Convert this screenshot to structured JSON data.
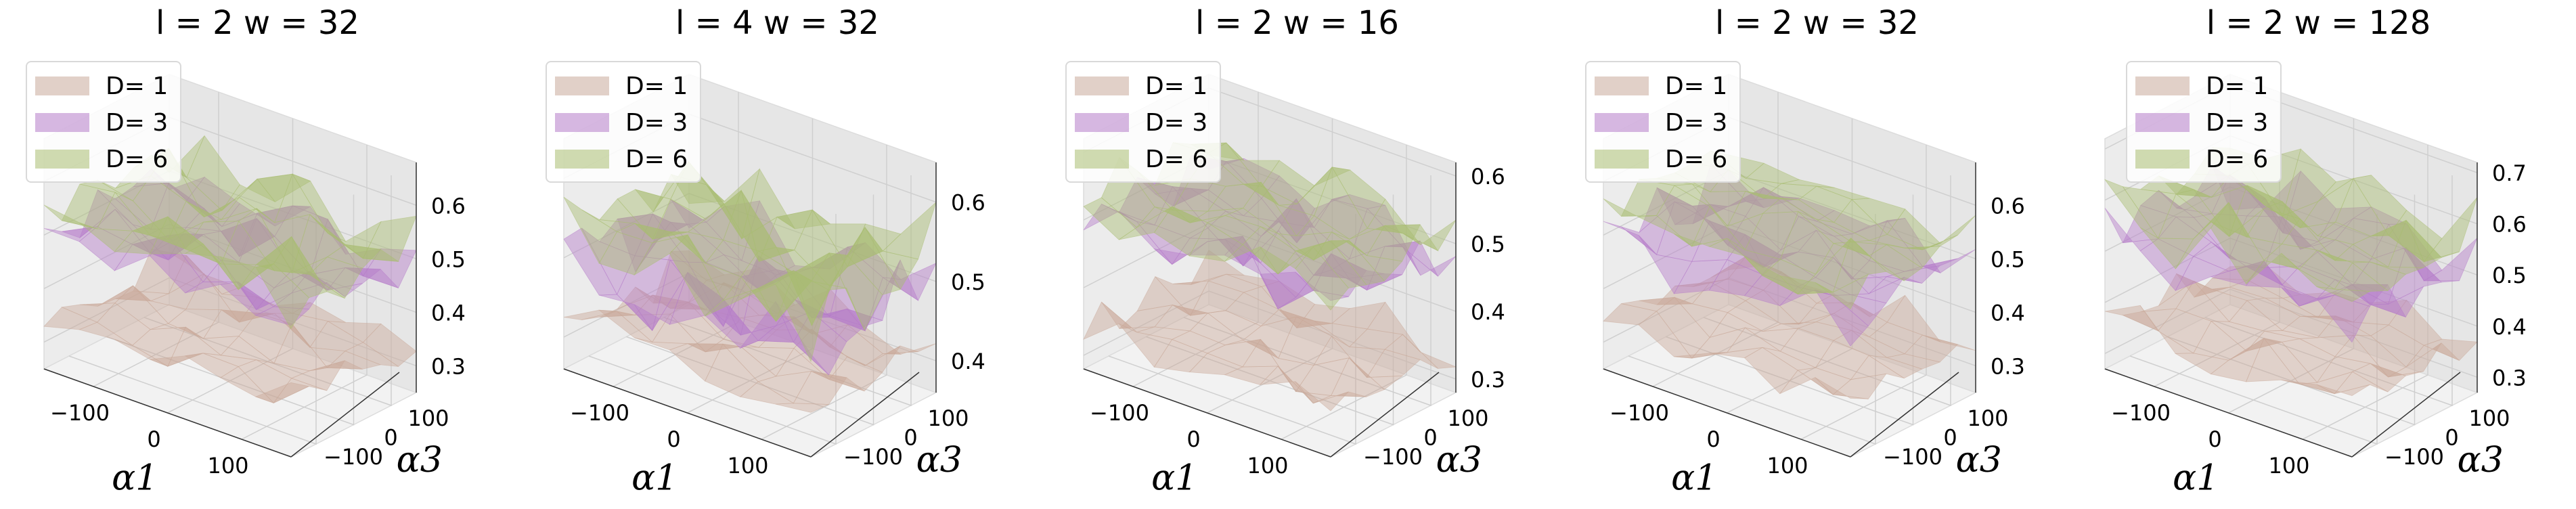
{
  "figure": {
    "panels": [
      {
        "title": "l = 2 w = 32"
      },
      {
        "title": "l = 4 w = 32"
      },
      {
        "title": "l = 2 w = 16"
      },
      {
        "title": "l = 2 w = 32"
      },
      {
        "title": "l = 2 w = 128"
      }
    ]
  },
  "chart_data": [
    {
      "type": "surface3d",
      "title": "l = 2 w = 32",
      "xlabel": "α1",
      "ylabel": "α3",
      "zlabel": "",
      "x_ticks": [
        "−100",
        "0",
        "100"
      ],
      "y_ticks": [
        "−100",
        "0",
        "100"
      ],
      "z_ticks": [
        "0.3",
        "0.4",
        "0.5",
        "0.6"
      ],
      "zlim": [
        0.25,
        0.68
      ],
      "legend_position": "top-left",
      "series": [
        {
          "name": "D= 1",
          "color": "#c9a99a",
          "z_range": [
            0.27,
            0.42
          ]
        },
        {
          "name": "D= 3",
          "color": "#b57cc9",
          "z_range": [
            0.4,
            0.6
          ]
        },
        {
          "name": "D= 6",
          "color": "#a9bd71",
          "z_range": [
            0.45,
            0.63
          ]
        }
      ]
    },
    {
      "type": "surface3d",
      "title": "l = 4 w = 32",
      "xlabel": "α1",
      "ylabel": "α3",
      "zlabel": "",
      "x_ticks": [
        "−100",
        "0",
        "100"
      ],
      "y_ticks": [
        "−100",
        "0",
        "100"
      ],
      "z_ticks": [
        "0.4",
        "0.5",
        "0.6"
      ],
      "zlim": [
        0.36,
        0.65
      ],
      "legend_position": "top-left",
      "series": [
        {
          "name": "D= 1",
          "color": "#c9a99a",
          "z_range": [
            0.37,
            0.47
          ]
        },
        {
          "name": "D= 3",
          "color": "#b57cc9",
          "z_range": [
            0.38,
            0.58
          ]
        },
        {
          "name": "D= 6",
          "color": "#a9bd71",
          "z_range": [
            0.42,
            0.63
          ]
        }
      ]
    },
    {
      "type": "surface3d",
      "title": "l = 2 w = 16",
      "xlabel": "α1",
      "ylabel": "α3",
      "zlabel": "",
      "x_ticks": [
        "−100",
        "0",
        "100"
      ],
      "y_ticks": [
        "−100",
        "0",
        "100"
      ],
      "z_ticks": [
        "0.3",
        "0.4",
        "0.5",
        "0.6"
      ],
      "zlim": [
        0.28,
        0.62
      ],
      "legend_position": "top-left",
      "series": [
        {
          "name": "D= 1",
          "color": "#c9a99a",
          "z_range": [
            0.29,
            0.4
          ]
        },
        {
          "name": "D= 3",
          "color": "#b57cc9",
          "z_range": [
            0.4,
            0.58
          ]
        },
        {
          "name": "D= 6",
          "color": "#a9bd71",
          "z_range": [
            0.44,
            0.6
          ]
        }
      ]
    },
    {
      "type": "surface3d",
      "title": "l = 2 w = 32",
      "xlabel": "α1",
      "ylabel": "α3",
      "zlabel": "",
      "x_ticks": [
        "−100",
        "0",
        "100"
      ],
      "y_ticks": [
        "−100",
        "0",
        "100"
      ],
      "z_ticks": [
        "0.3",
        "0.4",
        "0.5",
        "0.6"
      ],
      "zlim": [
        0.25,
        0.68
      ],
      "legend_position": "top-left",
      "series": [
        {
          "name": "D= 1",
          "color": "#c9a99a",
          "z_range": [
            0.27,
            0.42
          ]
        },
        {
          "name": "D= 3",
          "color": "#b57cc9",
          "z_range": [
            0.4,
            0.6
          ]
        },
        {
          "name": "D= 6",
          "color": "#a9bd71",
          "z_range": [
            0.45,
            0.63
          ]
        }
      ]
    },
    {
      "type": "surface3d",
      "title": "l = 2 w = 128",
      "xlabel": "α1",
      "ylabel": "α3",
      "zlabel": "",
      "x_ticks": [
        "−100",
        "0",
        "100"
      ],
      "y_ticks": [
        "−100",
        "0",
        "100"
      ],
      "z_ticks": [
        "0.3",
        "0.4",
        "0.5",
        "0.6",
        "0.7"
      ],
      "zlim": [
        0.27,
        0.72
      ],
      "legend_position": "top-left",
      "series": [
        {
          "name": "D= 1",
          "color": "#c9a99a",
          "z_range": [
            0.29,
            0.44
          ]
        },
        {
          "name": "D= 3",
          "color": "#b57cc9",
          "z_range": [
            0.42,
            0.63
          ]
        },
        {
          "name": "D= 6",
          "color": "#a9bd71",
          "z_range": [
            0.47,
            0.68
          ]
        }
      ]
    }
  ]
}
